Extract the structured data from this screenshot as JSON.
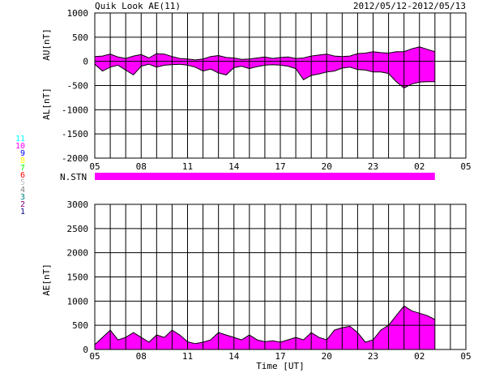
{
  "header": {
    "title": "Quik Look AE(11)",
    "date_range": "2012/05/12-2012/05/13"
  },
  "station_legend": [
    {
      "label": "11",
      "color": "#00ffff"
    },
    {
      "label": "10",
      "color": "#ff00ff"
    },
    {
      "label": "9",
      "color": "#0000ff"
    },
    {
      "label": "8",
      "color": "#ffff00"
    },
    {
      "label": "7",
      "color": "#00ff00"
    },
    {
      "label": "6",
      "color": "#ff0000"
    },
    {
      "label": "5",
      "color": "#c0c0c0"
    },
    {
      "label": "4",
      "color": "#808080"
    },
    {
      "label": "3",
      "color": "#008080"
    },
    {
      "label": "2",
      "color": "#800080"
    },
    {
      "label": "1",
      "color": "#000080"
    }
  ],
  "fill_color": "#ff00ff",
  "nstn_label": "N.STN",
  "x_tick_labels": [
    "05",
    "08",
    "11",
    "14",
    "17",
    "20",
    "23",
    "02",
    "05"
  ],
  "x_axis_label": "Time [UT]",
  "chart_data": [
    {
      "type": "area",
      "name": "AU/AL",
      "ylabel_top": "AU[nT]",
      "ylabel_bottom": "AL[nT]",
      "x_unit": "hours from 05 UT",
      "xlim": [
        0,
        24
      ],
      "ylim": [
        -2000,
        1000
      ],
      "y_ticks": [
        1000,
        500,
        0,
        -500,
        -1000,
        -1500,
        -2000
      ],
      "grid": true,
      "series": [
        {
          "name": "AU",
          "x": [
            0,
            0.5,
            1,
            1.5,
            2,
            2.5,
            3,
            3.5,
            4,
            4.5,
            5,
            5.5,
            6,
            6.5,
            7,
            7.5,
            8,
            8.5,
            9,
            9.5,
            10,
            10.5,
            11,
            11.5,
            12,
            12.5,
            13,
            13.5,
            14,
            14.5,
            15,
            15.5,
            16,
            16.5,
            17,
            17.5,
            18,
            18.5,
            19,
            19.5,
            20,
            20.5,
            21,
            21.5,
            22
          ],
          "values": [
            100,
            110,
            150,
            90,
            60,
            110,
            140,
            70,
            160,
            150,
            100,
            60,
            50,
            30,
            50,
            100,
            120,
            80,
            70,
            40,
            50,
            70,
            90,
            60,
            80,
            90,
            60,
            70,
            110,
            130,
            150,
            110,
            100,
            110,
            160,
            170,
            200,
            180,
            170,
            200,
            200,
            260,
            300,
            250,
            200
          ]
        },
        {
          "name": "AL",
          "x": [
            0,
            0.5,
            1,
            1.5,
            2,
            2.5,
            3,
            3.5,
            4,
            4.5,
            5,
            5.5,
            6,
            6.5,
            7,
            7.5,
            8,
            8.5,
            9,
            9.5,
            10,
            10.5,
            11,
            11.5,
            12,
            12.5,
            13,
            13.5,
            14,
            14.5,
            15,
            15.5,
            16,
            16.5,
            17,
            17.5,
            18,
            18.5,
            19,
            19.5,
            20,
            20.5,
            21,
            21.5,
            22
          ],
          "values": [
            -60,
            -200,
            -120,
            -80,
            -180,
            -280,
            -100,
            -60,
            -120,
            -80,
            -70,
            -60,
            -80,
            -120,
            -200,
            -160,
            -240,
            -280,
            -130,
            -100,
            -150,
            -110,
            -80,
            -70,
            -80,
            -100,
            -150,
            -380,
            -290,
            -260,
            -220,
            -200,
            -140,
            -120,
            -170,
            -180,
            -220,
            -220,
            -250,
            -420,
            -550,
            -470,
            -430,
            -420,
            -420
          ]
        }
      ]
    },
    {
      "type": "area",
      "name": "AE",
      "ylabel": "AE[nT]",
      "x_unit": "hours from 05 UT",
      "xlim": [
        0,
        24
      ],
      "ylim": [
        0,
        3000
      ],
      "y_ticks": [
        3000,
        2500,
        2000,
        1500,
        1000,
        500,
        0
      ],
      "grid": true,
      "series": [
        {
          "name": "AE",
          "x": [
            0,
            0.5,
            1,
            1.5,
            2,
            2.5,
            3,
            3.5,
            4,
            4.5,
            5,
            5.5,
            6,
            6.5,
            7,
            7.5,
            8,
            8.5,
            9,
            9.5,
            10,
            10.5,
            11,
            11.5,
            12,
            12.5,
            13,
            13.5,
            14,
            14.5,
            15,
            15.5,
            16,
            16.5,
            17,
            17.5,
            18,
            18.5,
            19,
            19.5,
            20,
            20.5,
            21,
            21.5,
            22
          ],
          "values": [
            100,
            250,
            400,
            200,
            250,
            350,
            250,
            150,
            300,
            250,
            400,
            300,
            160,
            120,
            150,
            200,
            350,
            300,
            250,
            200,
            300,
            200,
            160,
            180,
            150,
            200,
            250,
            200,
            350,
            250,
            200,
            400,
            450,
            480,
            350,
            150,
            200,
            400,
            500,
            700,
            900,
            800,
            750,
            700,
            620
          ]
        }
      ]
    }
  ]
}
